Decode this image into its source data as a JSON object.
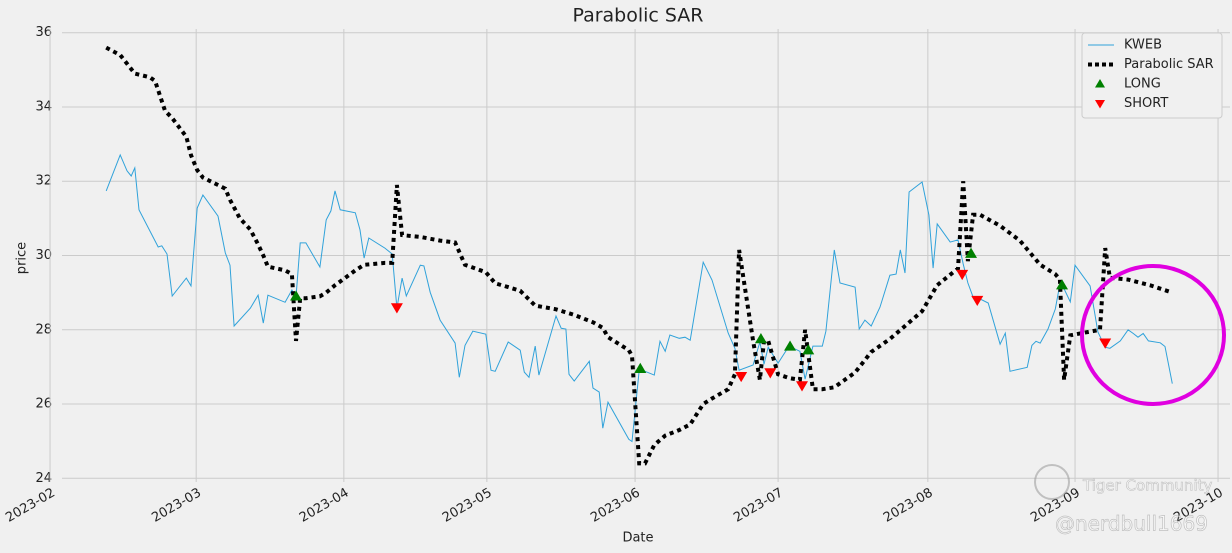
{
  "chart_data": {
    "type": "line",
    "title": "Parabolic SAR",
    "xlabel": "Date",
    "ylabel": "price",
    "xlim": [
      2.3,
      226.9
    ],
    "ylim": [
      23.9,
      36.1
    ],
    "xticks": [
      {
        "value": 0,
        "label": "2023-02"
      },
      {
        "value": 28.1,
        "label": "2023-03"
      },
      {
        "value": 56.5,
        "label": "2023-04"
      },
      {
        "value": 84,
        "label": "2023-05"
      },
      {
        "value": 112.5,
        "label": "2023-06"
      },
      {
        "value": 140,
        "label": "2023-07"
      },
      {
        "value": 168.8,
        "label": "2023-08"
      },
      {
        "value": 197.1,
        "label": "2023-09"
      },
      {
        "value": 224.6,
        "label": "2023-10"
      }
    ],
    "yticks": [
      24,
      26,
      28,
      30,
      32,
      34,
      36
    ],
    "grid": true,
    "legend": "upper right",
    "series": [
      {
        "name": "KWEB",
        "color": "#30a2da",
        "style": "solid",
        "x": [
          10.8,
          13.5,
          14.8,
          15.6,
          16.3,
          17.1,
          20.8,
          21.5,
          22.5,
          23.5,
          26.2,
          27.1,
          28.3,
          29.4,
          32.3,
          33.7,
          34.6,
          35.4,
          38.5,
          40,
          41,
          41.9,
          45.2,
          46.5,
          47.3,
          48.1,
          49.2,
          51.9,
          53.1,
          54,
          54.8,
          55.8,
          58.7,
          59.6,
          60.4,
          61.3,
          64.4,
          65.8,
          66.7,
          67.7,
          68.5,
          71.2,
          71.9,
          73.1,
          75,
          77.9,
          78.7,
          79.8,
          81.3,
          83.8,
          84.8,
          85.6,
          88.1,
          90.4,
          91.2,
          92.1,
          93.3,
          94,
          97.3,
          98.3,
          99.2,
          99.8,
          100.8,
          103.7,
          104.4,
          105.6,
          106.3,
          107.3,
          111.3,
          111.9,
          113.3,
          114.4,
          116.2,
          117.3,
          118.3,
          119.2,
          121,
          122.1,
          123.1,
          125.6,
          127.3,
          130.4,
          131.7,
          132.5,
          135.2,
          136.5,
          137.3,
          138.1,
          140,
          142.1,
          144.2,
          145.2,
          146.7,
          148.5,
          149.2,
          150.8,
          151.9,
          154.8,
          155.6,
          156.7,
          157.9,
          159.6,
          161.5,
          162.7,
          163.5,
          164.4,
          165.2,
          167.7,
          169,
          169.8,
          170.6,
          173.1,
          174.6,
          175.6,
          176.5,
          177.5,
          178.8,
          180.4,
          182.7,
          183.7,
          184.6,
          187.9,
          188.8,
          189.6,
          190.4,
          191.9,
          193.3,
          194.2,
          195,
          196.2,
          197.1,
          200,
          201.5,
          202.9,
          203.8,
          205.8,
          207.3,
          208.3,
          209.2,
          210.2,
          211.2,
          213.5,
          214.4,
          215.8
        ],
        "values": [
          31.74,
          32.71,
          32.28,
          32.14,
          32.36,
          31.23,
          30.23,
          30.26,
          30.04,
          28.91,
          29.39,
          29.18,
          31.28,
          31.63,
          31.06,
          30.07,
          29.74,
          28.1,
          28.58,
          28.93,
          28.18,
          28.93,
          28.74,
          29.07,
          28.88,
          30.34,
          30.34,
          29.69,
          30.96,
          31.2,
          31.74,
          31.23,
          31.15,
          30.69,
          29.93,
          30.47,
          30.2,
          30.04,
          28.58,
          29.39,
          28.91,
          29.74,
          29.72,
          29.01,
          28.26,
          27.64,
          26.72,
          27.58,
          27.96,
          27.88,
          26.91,
          26.88,
          27.67,
          27.45,
          26.86,
          26.72,
          27.56,
          26.78,
          28.37,
          28.04,
          28.02,
          26.8,
          26.62,
          27.15,
          26.43,
          26.32,
          25.35,
          26.05,
          25.05,
          24.99,
          26.91,
          26.88,
          26.78,
          27.69,
          27.42,
          27.86,
          27.77,
          27.8,
          27.72,
          29.82,
          29.34,
          27.91,
          27.5,
          26.91,
          27.05,
          27.67,
          27.07,
          27.53,
          27.1,
          27.56,
          27.42,
          26.67,
          27.56,
          27.56,
          27.96,
          30.15,
          29.26,
          29.15,
          28.02,
          28.26,
          28.1,
          28.61,
          29.47,
          29.5,
          30.15,
          29.53,
          31.71,
          31.98,
          31.09,
          29.66,
          30.85,
          30.36,
          30.42,
          29.77,
          29.26,
          28.88,
          28.83,
          28.72,
          27.61,
          27.91,
          26.88,
          26.99,
          27.58,
          27.69,
          27.64,
          28.02,
          28.56,
          29.23,
          29.1,
          28.75,
          29.74,
          29.18,
          27.94,
          27.53,
          27.5,
          27.7,
          28.0,
          27.9,
          27.8,
          27.9,
          27.7,
          27.65,
          27.55,
          26.55
        ]
      },
      {
        "name": "Parabolic SAR",
        "color": "#000000",
        "style": "dotted",
        "x": [
          10.8,
          13.5,
          16.3,
          19.2,
          20.2,
          22.1,
          23.5,
          26.2,
          27.1,
          28.3,
          29.4,
          32.3,
          33.7,
          34.6,
          36.5,
          38.5,
          40,
          41,
          41.9,
          45.2,
          46.5,
          47.3,
          48.1,
          49.2,
          51.9,
          53.1,
          54.8,
          55.8,
          58.7,
          60.4,
          64.4,
          65.8,
          66.7,
          67.7,
          71.2,
          75,
          77.9,
          79.8,
          83.8,
          85.6,
          88.1,
          90.4,
          93.3,
          97.3,
          100.8,
          104.4,
          106.3,
          107.3,
          111.3,
          111.9,
          113.3,
          114.4,
          116.2,
          118.3,
          121,
          123.1,
          125.6,
          127.3,
          130.4,
          131.7,
          132.5,
          135.2,
          136.5,
          137.3,
          138.1,
          140,
          142.1,
          144.2,
          145.2,
          146.7,
          148.5,
          150.8,
          154.8,
          157.9,
          161.5,
          164.4,
          167.7,
          170.6,
          174.6,
          175.6,
          176.5,
          177.5,
          178.8,
          182.7,
          186.5,
          190.4,
          193.3,
          194.2,
          195,
          196.2,
          200,
          201.9,
          202.9,
          203.8,
          207.3,
          211.5,
          215.8
        ],
        "values": [
          35.6,
          35.4,
          34.9,
          34.8,
          34.7,
          33.9,
          33.7,
          33.2,
          32.7,
          32.3,
          32.1,
          31.9,
          31.8,
          31.5,
          31.0,
          30.7,
          30.3,
          30.0,
          29.7,
          29.6,
          29.5,
          27.7,
          28.85,
          28.85,
          28.9,
          29.0,
          29.2,
          29.3,
          29.6,
          29.75,
          29.8,
          29.8,
          31.9,
          30.55,
          30.5,
          30.4,
          30.35,
          29.75,
          29.55,
          29.25,
          29.15,
          29.05,
          28.65,
          28.55,
          28.4,
          28.2,
          28.05,
          27.8,
          27.45,
          27.3,
          24.4,
          24.4,
          24.9,
          25.15,
          25.3,
          25.45,
          26.0,
          26.15,
          26.4,
          26.8,
          30.15,
          27.7,
          26.65,
          27.7,
          27.7,
          26.8,
          26.7,
          26.65,
          28.0,
          26.4,
          26.4,
          26.45,
          26.85,
          27.4,
          27.75,
          28.1,
          28.5,
          29.2,
          29.65,
          32.0,
          29.85,
          31.1,
          31.1,
          30.8,
          30.4,
          29.75,
          29.5,
          29.35,
          26.65,
          27.85,
          27.95,
          28.0,
          30.2,
          29.4,
          29.35,
          29.2,
          29.0
        ]
      },
      {
        "name": "LONG",
        "color": "#008000",
        "marker": "^",
        "x": [
          47.3,
          113.5,
          136.7,
          142.3,
          145.8,
          177.1,
          194.6
        ],
        "values": [
          28.9,
          26.95,
          27.75,
          27.55,
          27.45,
          30.05,
          29.2
        ]
      },
      {
        "name": "SHORT",
        "color": "#ff0000",
        "marker": "v",
        "x": [
          66.7,
          132.9,
          138.5,
          144.6,
          175.4,
          178.3,
          202.9
        ],
        "values": [
          28.6,
          26.75,
          26.85,
          26.5,
          29.5,
          28.8,
          27.65
        ]
      }
    ]
  },
  "watermark": [
    "Tiger Community",
    "@nerdbull1669"
  ]
}
